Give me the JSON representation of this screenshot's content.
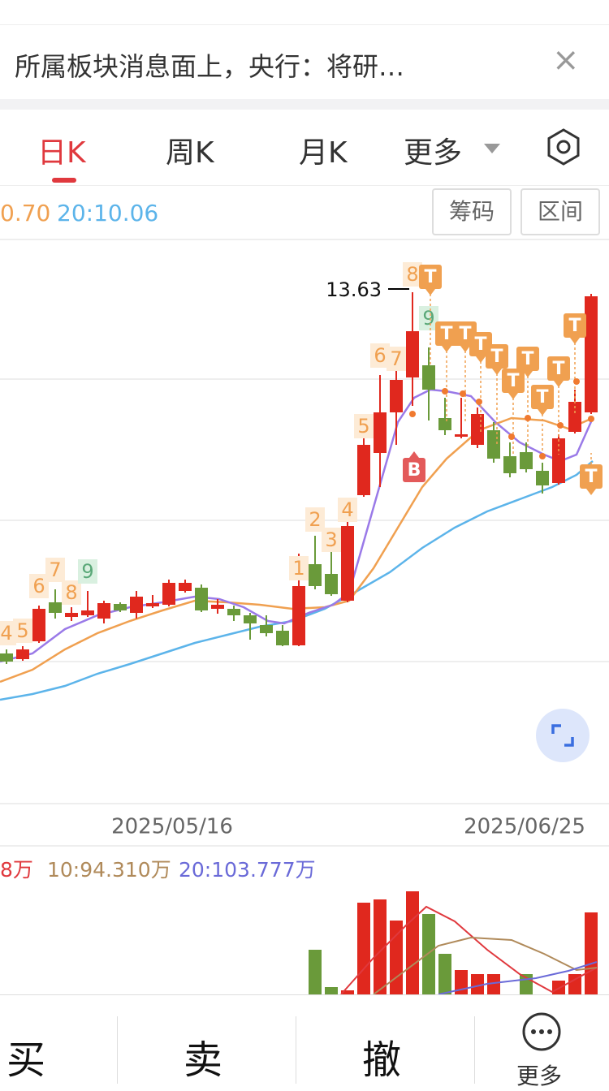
{
  "news": {
    "text": "所属板块消息面上，央行：将研…"
  },
  "tabs": [
    "日K",
    "周K",
    "月K",
    "更多"
  ],
  "legend": {
    "ma_a": "0.70",
    "ma_b": "20:10.06"
  },
  "buttons": [
    "筹码",
    "区间"
  ],
  "chart": {
    "high_label": "13.63",
    "dates": [
      "2025/05/16",
      "2025/06/25"
    ],
    "seq": [
      "4",
      "5",
      "6",
      "7",
      "8",
      "9",
      "1",
      "2",
      "3",
      "4",
      "5",
      "6",
      "7",
      "8",
      "9"
    ],
    "signals": [
      "T",
      "T",
      "T",
      "T",
      "T",
      "T",
      "T",
      "T",
      "T",
      "T",
      "T",
      "B"
    ]
  },
  "volume_legend": [
    "8万",
    "10:94.310万",
    "20:103.777万"
  ],
  "actions": [
    "买",
    "卖",
    "撤",
    "更多"
  ]
}
